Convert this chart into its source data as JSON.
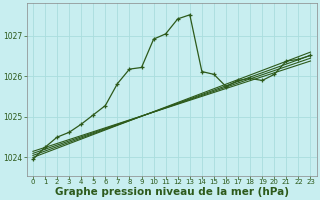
{
  "bg_color": "#c8eef0",
  "grid_color": "#aadddd",
  "line_color": "#2d5a1b",
  "xlabel": "Graphe pression niveau de la mer (hPa)",
  "xlabel_fontsize": 7.5,
  "xlabel_color": "#2d5a1b",
  "ylabel_ticks": [
    1024,
    1025,
    1026,
    1027
  ],
  "xticks": [
    0,
    1,
    2,
    3,
    4,
    5,
    6,
    7,
    8,
    9,
    10,
    11,
    12,
    13,
    14,
    15,
    16,
    17,
    18,
    19,
    20,
    21,
    22,
    23
  ],
  "xlim": [
    -0.5,
    23.5
  ],
  "ylim": [
    1023.55,
    1027.8
  ],
  "main_line_x": [
    0,
    1,
    2,
    3,
    4,
    5,
    6,
    7,
    8,
    9,
    10,
    11,
    12,
    13,
    14,
    15,
    16,
    17,
    18,
    19,
    20,
    21,
    22,
    23
  ],
  "main_line_y": [
    1023.95,
    1024.25,
    1024.5,
    1024.62,
    1024.82,
    1025.05,
    1025.28,
    1025.82,
    1026.18,
    1026.22,
    1026.92,
    1027.05,
    1027.42,
    1027.52,
    1026.12,
    1026.05,
    1025.75,
    1025.9,
    1025.95,
    1025.9,
    1026.05,
    1026.38,
    1026.42,
    1026.52
  ],
  "line2_x": [
    0,
    23
  ],
  "line2_y": [
    1024.0,
    1026.6
  ],
  "line3_x": [
    0,
    23
  ],
  "line3_y": [
    1024.05,
    1026.52
  ],
  "line4_x": [
    0,
    23
  ],
  "line4_y": [
    1024.1,
    1026.45
  ],
  "line5_x": [
    0,
    23
  ],
  "line5_y": [
    1024.15,
    1026.38
  ]
}
